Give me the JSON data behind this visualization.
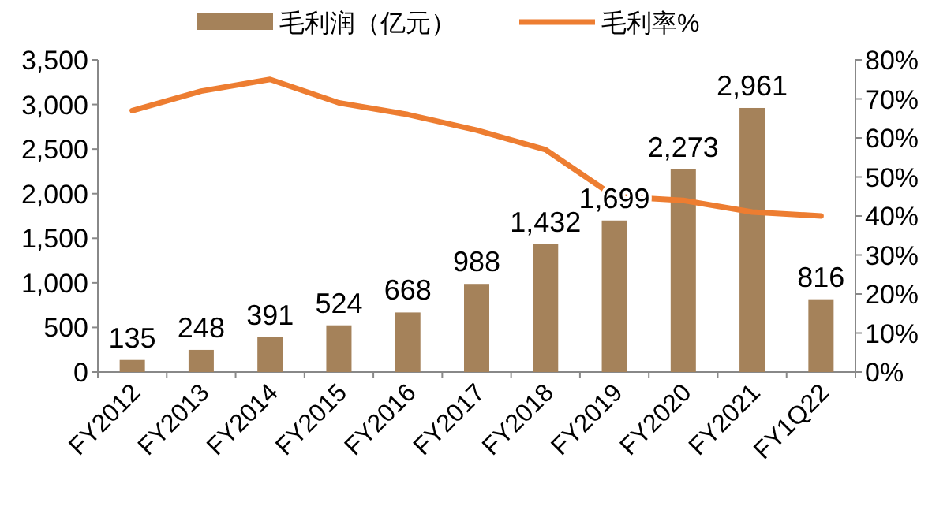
{
  "chart_data": {
    "type": "bar",
    "categories": [
      "FY2012",
      "FY2013",
      "FY2014",
      "FY2015",
      "FY2016",
      "FY2017",
      "FY2018",
      "FY2019",
      "FY2020",
      "FY2021",
      "FY1Q22"
    ],
    "series": [
      {
        "name": "毛利润（亿元）",
        "color": "#a5825a",
        "values": [
          135,
          248,
          391,
          524,
          668,
          988,
          1432,
          1699,
          2273,
          2961,
          816
        ],
        "value_labels": [
          "135",
          "248",
          "391",
          "524",
          "668",
          "988",
          "1,432",
          "1,699",
          "2,273",
          "2,961",
          "816"
        ]
      },
      {
        "name": "毛利率%",
        "type": "line",
        "axis": "y2",
        "color": "#ed7d31",
        "values": [
          67,
          72,
          75,
          69,
          66,
          62,
          57,
          45,
          44,
          41,
          40
        ]
      }
    ],
    "ylim": [
      0,
      3500
    ],
    "yticks": [
      0,
      {
        "value": 500,
        "label": "500"
      },
      {
        "value": 1000,
        "label": "1,000"
      },
      {
        "value": 1500,
        "label": "1,500"
      },
      {
        "value": 2000,
        "label": "2,000"
      },
      {
        "value": 2500,
        "label": "2,500"
      },
      {
        "value": 3000,
        "label": "3,000"
      },
      {
        "value": 3500,
        "label": "3,500"
      }
    ],
    "y2lim": [
      0,
      80
    ],
    "y2ticks": [
      {
        "value": 0,
        "label": "0%"
      },
      {
        "value": 10,
        "label": "10%"
      },
      {
        "value": 20,
        "label": "20%"
      },
      {
        "value": 30,
        "label": "30%"
      },
      {
        "value": 40,
        "label": "40%"
      },
      {
        "value": 50,
        "label": "50%"
      },
      {
        "value": 60,
        "label": "60%"
      },
      {
        "value": 70,
        "label": "70%"
      },
      {
        "value": 80,
        "label": "80%"
      }
    ],
    "legend": "top",
    "grid": false,
    "marker": "none",
    "line_style": "solid"
  }
}
